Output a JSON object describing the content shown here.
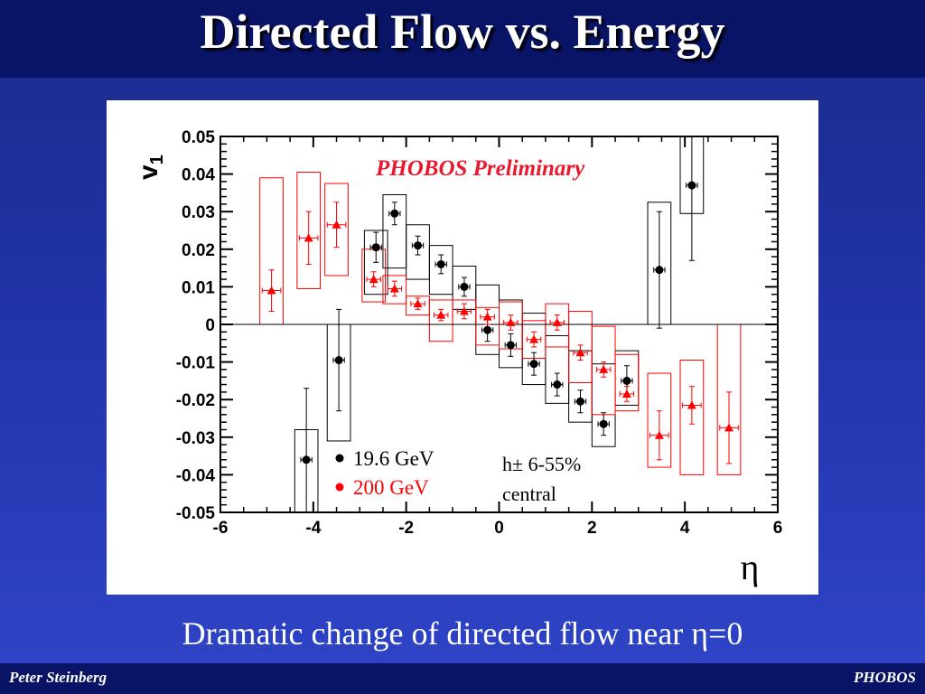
{
  "slide": {
    "title": "Directed Flow vs. Energy",
    "caption": "Dramatic change of directed flow near η=0",
    "footer_left": "Peter Steinberg",
    "footer_right": "PHOBOS"
  },
  "chart_data": {
    "type": "scatter",
    "title": "PHOBOS Preliminary",
    "xlabel": "η",
    "ylabel": "v1",
    "xlim": [
      -6,
      6
    ],
    "ylim": [
      -0.05,
      0.05
    ],
    "xticks": [
      "-6",
      "-4",
      "-2",
      "0",
      "2",
      "4",
      "6"
    ],
    "yticks": [
      "0.05",
      "0.04",
      "0.03",
      "0.02",
      "0.01",
      "0",
      "-0.01",
      "-0.02",
      "-0.03",
      "-0.04",
      "-0.05"
    ],
    "annotation": [
      "h± 6-55%",
      "central"
    ],
    "legend_position": "bottom-left",
    "series": [
      {
        "name": "19.6 GeV",
        "color": "#000000",
        "marker": "circle",
        "points": [
          {
            "x": -4.15,
            "y": -0.036,
            "err": 0.019,
            "sys": [
              -0.05,
              -0.028
            ],
            "xerr": 0.12
          },
          {
            "x": -3.45,
            "y": -0.0095,
            "err": 0.0135,
            "sys": [
              -0.031,
              0.0
            ],
            "xerr": 0.12
          },
          {
            "x": -2.65,
            "y": 0.0205,
            "err": 0.004,
            "sys": [
              0.008,
              0.025
            ],
            "xerr": 0.12
          },
          {
            "x": -2.25,
            "y": 0.0295,
            "err": 0.003,
            "sys": [
              0.015,
              0.0345
            ],
            "xerr": 0.12
          },
          {
            "x": -1.75,
            "y": 0.021,
            "err": 0.0025,
            "sys": [
              0.012,
              0.0265
            ],
            "xerr": 0.12
          },
          {
            "x": -1.25,
            "y": 0.016,
            "err": 0.0025,
            "sys": [
              0.008,
              0.021
            ],
            "xerr": 0.12
          },
          {
            "x": -0.75,
            "y": 0.01,
            "err": 0.0025,
            "sys": [
              0.004,
              0.0155
            ],
            "xerr": 0.12
          },
          {
            "x": -0.25,
            "y": -0.0015,
            "err": 0.003,
            "sys": [
              -0.008,
              0.0105
            ],
            "xerr": 0.12
          },
          {
            "x": 0.25,
            "y": -0.0055,
            "err": 0.003,
            "sys": [
              -0.0115,
              0.0065
            ],
            "xerr": 0.12
          },
          {
            "x": 0.75,
            "y": -0.0105,
            "err": 0.003,
            "sys": [
              -0.016,
              0.003
            ],
            "xerr": 0.12
          },
          {
            "x": 1.25,
            "y": -0.016,
            "err": 0.003,
            "sys": [
              -0.021,
              -0.003
            ],
            "xerr": 0.12
          },
          {
            "x": 1.75,
            "y": -0.0205,
            "err": 0.003,
            "sys": [
              -0.026,
              -0.007
            ],
            "xerr": 0.12
          },
          {
            "x": 2.25,
            "y": -0.0265,
            "err": 0.003,
            "sys": [
              -0.0325,
              -0.0105
            ],
            "xerr": 0.12
          },
          {
            "x": 2.75,
            "y": -0.015,
            "err": 0.004,
            "sys": [
              -0.0215,
              -0.007
            ],
            "xerr": 0.12
          },
          {
            "x": 3.45,
            "y": 0.0145,
            "err": 0.0155,
            "sys": [
              0.0,
              0.0325
            ],
            "xerr": 0.12
          },
          {
            "x": 4.15,
            "y": 0.037,
            "err": 0.02,
            "sys": [
              0.0295,
              0.05
            ],
            "xerr": 0.12
          }
        ]
      },
      {
        "name": "200 GeV",
        "color": "#ff0000",
        "marker": "triangle",
        "points": [
          {
            "x": -4.9,
            "y": 0.009,
            "err": 0.0055,
            "sys": [
              0.0,
              0.039
            ],
            "xerr": 0.2
          },
          {
            "x": -4.1,
            "y": 0.023,
            "err": 0.007,
            "sys": [
              0.0095,
              0.0405
            ],
            "xerr": 0.2
          },
          {
            "x": -3.5,
            "y": 0.0265,
            "err": 0.006,
            "sys": [
              0.013,
              0.0375
            ],
            "xerr": 0.2
          },
          {
            "x": -2.7,
            "y": 0.012,
            "err": 0.002,
            "sys": [
              0.006,
              0.02
            ],
            "xerr": 0.15
          },
          {
            "x": -2.25,
            "y": 0.0095,
            "err": 0.002,
            "sys": [
              0.0055,
              0.013
            ],
            "xerr": 0.15
          },
          {
            "x": -1.75,
            "y": 0.0055,
            "err": 0.0015,
            "sys": [
              0.0025,
              0.0075
            ],
            "xerr": 0.15
          },
          {
            "x": -1.25,
            "y": 0.0025,
            "err": 0.0015,
            "sys": [
              -0.0045,
              0.0065
            ],
            "xerr": 0.15
          },
          {
            "x": -0.75,
            "y": 0.0035,
            "err": 0.002,
            "sys": [
              0.0,
              0.0065
            ],
            "xerr": 0.15
          },
          {
            "x": -0.25,
            "y": 0.002,
            "err": 0.002,
            "sys": [
              -0.0055,
              0.0045
            ],
            "xerr": 0.15
          },
          {
            "x": 0.25,
            "y": 0.0005,
            "err": 0.002,
            "sys": [
              -0.0065,
              0.006
            ],
            "xerr": 0.15
          },
          {
            "x": 0.75,
            "y": -0.004,
            "err": 0.002,
            "sys": [
              -0.009,
              0.001
            ],
            "xerr": 0.15
          },
          {
            "x": 1.25,
            "y": 0.0005,
            "err": 0.002,
            "sys": [
              -0.006,
              0.0055
            ],
            "xerr": 0.15
          },
          {
            "x": 1.75,
            "y": -0.0075,
            "err": 0.002,
            "sys": [
              -0.0155,
              0.0035
            ],
            "xerr": 0.15
          },
          {
            "x": 2.25,
            "y": -0.012,
            "err": 0.002,
            "sys": [
              -0.024,
              -0.0005
            ],
            "xerr": 0.15
          },
          {
            "x": 2.75,
            "y": -0.0185,
            "err": 0.002,
            "sys": [
              -0.023,
              -0.008
            ],
            "xerr": 0.15
          },
          {
            "x": 3.45,
            "y": -0.0295,
            "err": 0.0065,
            "sys": [
              -0.038,
              -0.013
            ],
            "xerr": 0.2
          },
          {
            "x": 4.15,
            "y": -0.0215,
            "err": 0.005,
            "sys": [
              -0.04,
              -0.0095
            ],
            "xerr": 0.2
          },
          {
            "x": 4.95,
            "y": -0.0275,
            "err": 0.0095,
            "sys": [
              -0.04,
              0.0
            ],
            "xerr": 0.2
          }
        ]
      }
    ]
  }
}
